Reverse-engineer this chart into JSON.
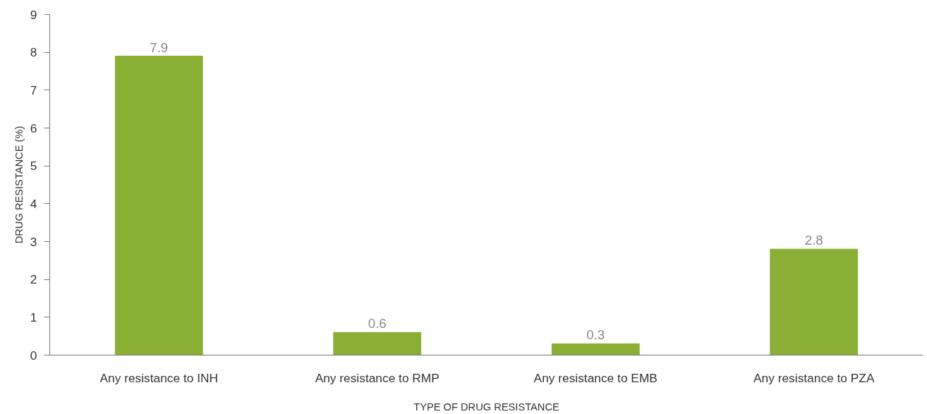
{
  "chart_data": {
    "type": "bar",
    "categories": [
      "Any resistance to INH",
      "Any resistance to RMP",
      "Any resistance to EMB",
      "Any resistance to PZA"
    ],
    "values": [
      7.9,
      0.6,
      0.3,
      2.8
    ],
    "color": "#8aaf35",
    "xlabel": "TYPE OF DRUG RESISTANCE",
    "ylabel": "DRUG RESISTANCE (%)",
    "ylim": [
      0,
      9
    ],
    "yticks": [
      0,
      1,
      2,
      3,
      4,
      5,
      6,
      7,
      8,
      9
    ],
    "grid": false,
    "data_labels": true
  }
}
